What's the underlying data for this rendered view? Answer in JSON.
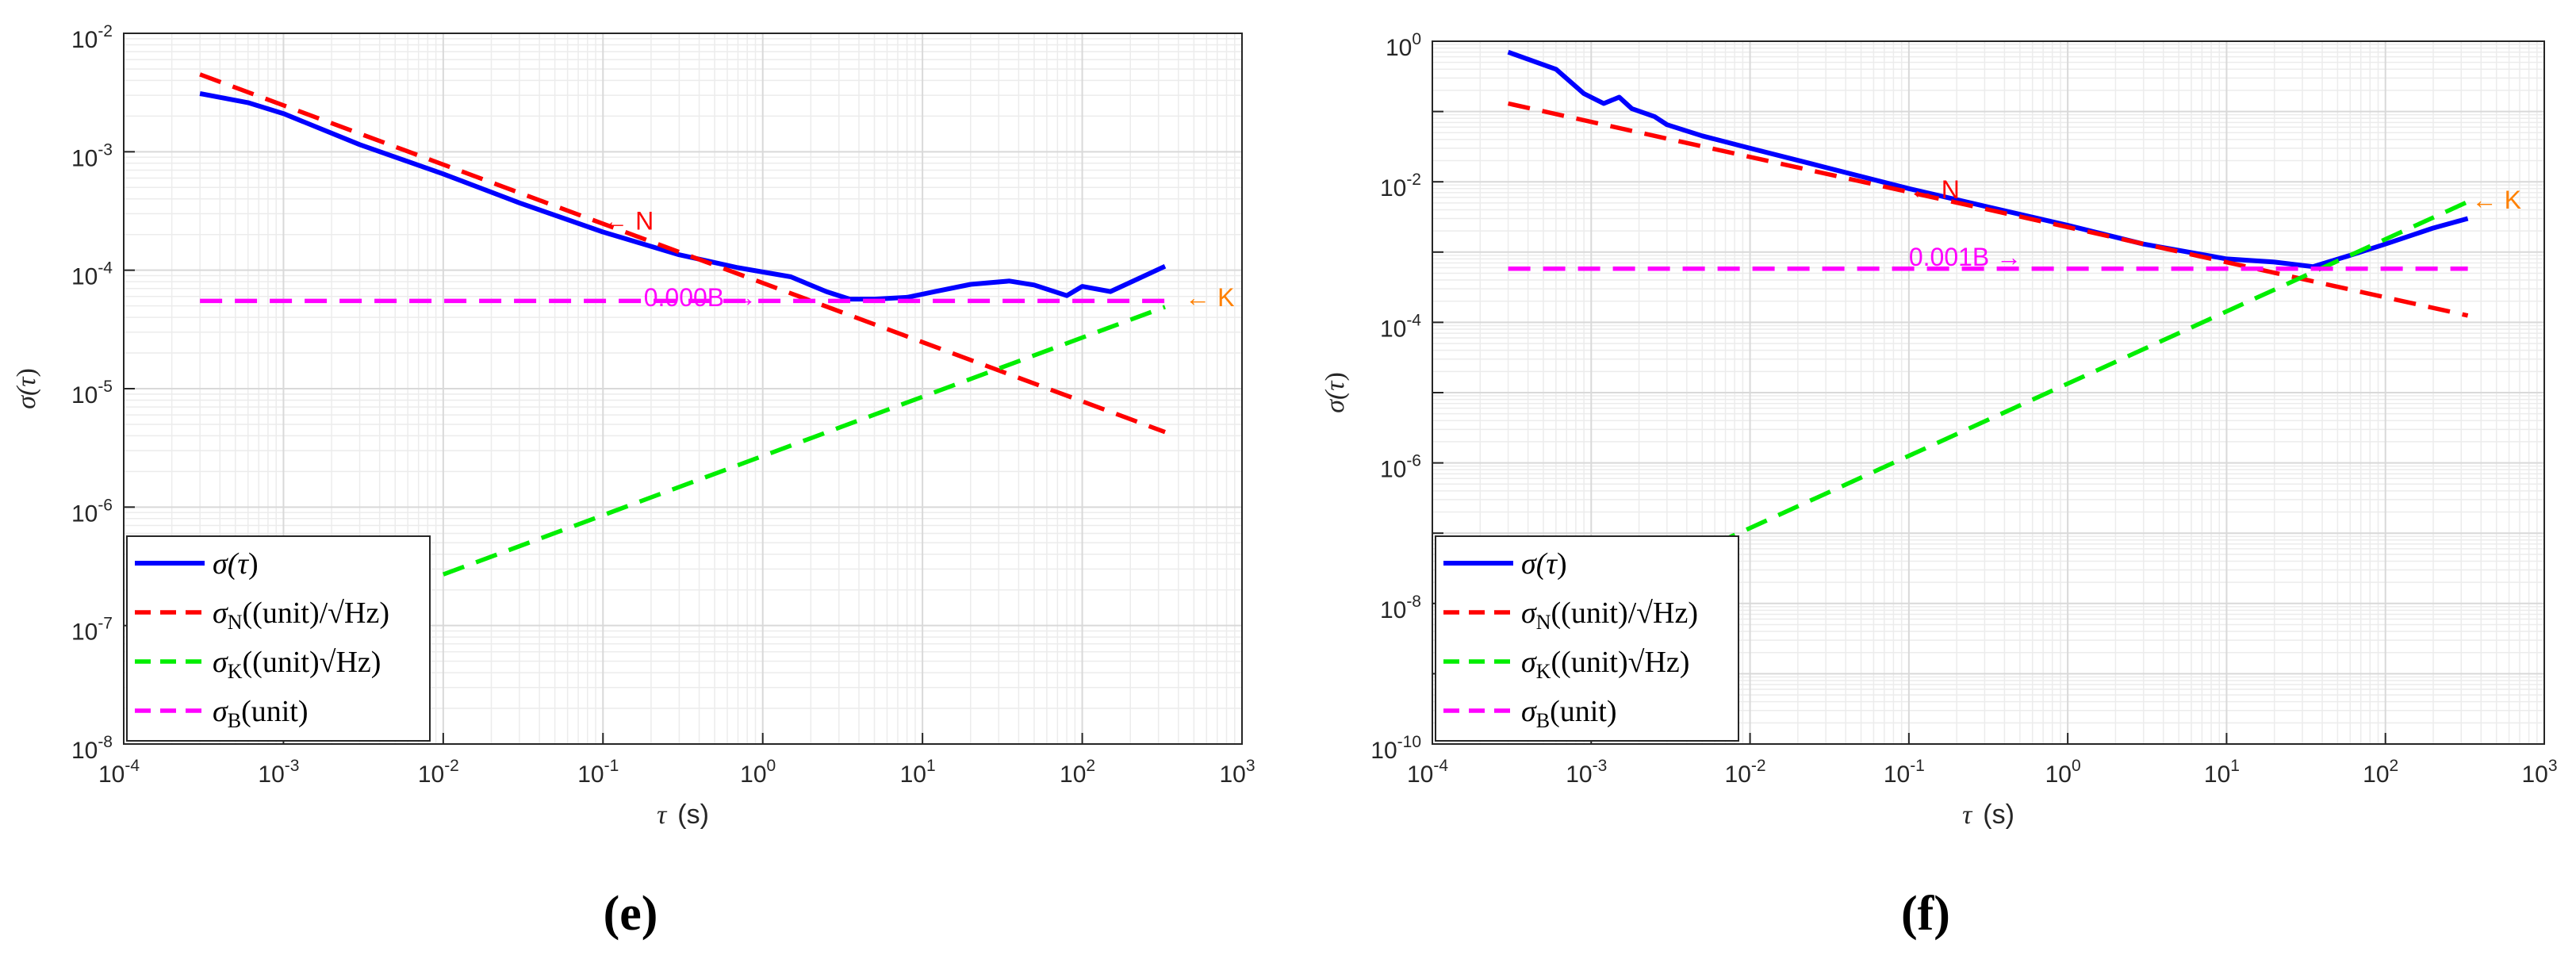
{
  "colors": {
    "sigma": "#0000FF",
    "N": "#FF0000",
    "K": "#00EE00",
    "B": "#FF00FF",
    "K_annot": "#FF8000"
  },
  "legend_labels": {
    "sigma": {
      "pre": "σ(",
      "tau": "τ",
      "post": ")"
    },
    "N": {
      "sym": "σ",
      "sub": "N",
      "rest": "((unit)/√Hz)"
    },
    "K": {
      "sym": "σ",
      "sub": "K",
      "rest": "((unit)√Hz)"
    },
    "B": {
      "sym": "σ",
      "sub": "B",
      "rest": "(unit)"
    }
  },
  "chart_data": [
    {
      "type": "line",
      "panel_label": "(e)",
      "xscale": "log",
      "yscale": "log",
      "xlabel": {
        "sym": "τ",
        "unit": "(s)"
      },
      "ylabel": {
        "pre": "σ(",
        "tau": "τ",
        "post": ")"
      },
      "xlim": [
        0.0001,
        1000
      ],
      "ylim": [
        1e-08,
        0.01
      ],
      "x_ticks": [
        {
          "base": "10",
          "exp": "-4",
          "v": 0.0001
        },
        {
          "base": "10",
          "exp": "-3",
          "v": 0.001
        },
        {
          "base": "10",
          "exp": "-2",
          "v": 0.01
        },
        {
          "base": "10",
          "exp": "-1",
          "v": 0.1
        },
        {
          "base": "10",
          "exp": "0",
          "v": 1
        },
        {
          "base": "10",
          "exp": "1",
          "v": 10
        },
        {
          "base": "10",
          "exp": "2",
          "v": 100
        },
        {
          "base": "10",
          "exp": "3",
          "v": 1000
        }
      ],
      "y_ticks": [
        {
          "base": "10",
          "exp": "-8",
          "v": 1e-08
        },
        {
          "base": "10",
          "exp": "-7",
          "v": 1e-07
        },
        {
          "base": "10",
          "exp": "-6",
          "v": 1e-06
        },
        {
          "base": "10",
          "exp": "-5",
          "v": 1e-05
        },
        {
          "base": "10",
          "exp": "-4",
          "v": 0.0001
        },
        {
          "base": "10",
          "exp": "-3",
          "v": 0.001
        },
        {
          "base": "10",
          "exp": "-2",
          "v": 0.01
        }
      ],
      "grid": true,
      "legend_position": "bottom-left",
      "series": [
        {
          "name": "sigma",
          "style": "solid",
          "x": [
            0.0003,
            0.0006,
            0.001,
            0.003,
            0.01,
            0.03,
            0.1,
            0.3,
            0.7,
            1.5,
            2.5,
            3.5,
            5,
            8,
            12,
            20,
            35,
            50,
            80,
            100,
            150,
            200,
            330
          ],
          "y": [
            0.0031,
            0.0026,
            0.0021,
            0.00115,
            0.00065,
            0.00037,
            0.00021,
            0.000135,
            0.000105,
            8.8e-05,
            6.6e-05,
            5.7e-05,
            5.7e-05,
            5.9e-05,
            6.6e-05,
            7.6e-05,
            8.1e-05,
            7.5e-05,
            6.1e-05,
            7.3e-05,
            6.6e-05,
            7.9e-05,
            0.000108
          ]
        },
        {
          "name": "N",
          "style": "dashed",
          "x": [
            0.0003,
            330
          ],
          "y": [
            0.0045,
            4.3e-06
          ]
        },
        {
          "name": "K",
          "style": "dashed",
          "x": [
            0.01,
            330
          ],
          "y": [
            2.7e-07,
            4.9e-05
          ]
        },
        {
          "name": "B",
          "style": "dashed",
          "x": [
            0.0003,
            330
          ],
          "y": [
            5.5e-05,
            5.5e-05
          ]
        }
      ],
      "annotations": [
        {
          "text": "← N",
          "color": "N",
          "x": 0.1,
          "y": 0.00026
        },
        {
          "text": "0.000B →",
          "color": "B",
          "x": 0.18,
          "y": 5.9e-05
        },
        {
          "text": "← K",
          "color": "K_annot",
          "x": 440,
          "y": 5.9e-05
        }
      ]
    },
    {
      "type": "line",
      "panel_label": "(f)",
      "xscale": "log",
      "yscale": "log",
      "xlabel": {
        "sym": "τ",
        "unit": "(s)"
      },
      "ylabel": {
        "pre": "σ(",
        "tau": "τ",
        "post": ")"
      },
      "xlim": [
        0.0001,
        1000
      ],
      "ylim": [
        1e-10,
        1
      ],
      "x_ticks": [
        {
          "base": "10",
          "exp": "-4",
          "v": 0.0001
        },
        {
          "base": "10",
          "exp": "-3",
          "v": 0.001
        },
        {
          "base": "10",
          "exp": "-2",
          "v": 0.01
        },
        {
          "base": "10",
          "exp": "-1",
          "v": 0.1
        },
        {
          "base": "10",
          "exp": "0",
          "v": 1
        },
        {
          "base": "10",
          "exp": "1",
          "v": 10
        },
        {
          "base": "10",
          "exp": "2",
          "v": 100
        },
        {
          "base": "10",
          "exp": "3",
          "v": 1000
        }
      ],
      "y_ticks": [
        {
          "base": "10",
          "exp": "-10",
          "v": 1e-10
        },
        {
          "base": "10",
          "exp": "-8",
          "v": 1e-08
        },
        {
          "base": "10",
          "exp": "-6",
          "v": 1e-06
        },
        {
          "base": "10",
          "exp": "-4",
          "v": 0.0001
        },
        {
          "base": "10",
          "exp": "-2",
          "v": 0.01
        },
        {
          "base": "10",
          "exp": "0",
          "v": 1
        }
      ],
      "grid": true,
      "legend_position": "bottom-left",
      "series": [
        {
          "name": "sigma",
          "style": "solid",
          "x": [
            0.0003,
            0.0006,
            0.0009,
            0.0012,
            0.0015,
            0.0018,
            0.0025,
            0.003,
            0.005,
            0.01,
            0.03,
            0.1,
            0.3,
            1,
            3,
            10,
            20,
            35,
            60,
            100,
            200,
            330
          ],
          "y": [
            0.7,
            0.4,
            0.18,
            0.13,
            0.16,
            0.11,
            0.085,
            0.065,
            0.045,
            0.03,
            0.016,
            0.008,
            0.0045,
            0.0024,
            0.0013,
            0.0008,
            0.00072,
            0.00062,
            0.0009,
            0.0013,
            0.0022,
            0.003
          ]
        },
        {
          "name": "N",
          "style": "dashed",
          "x": [
            0.0003,
            330
          ],
          "y": [
            0.13,
            0.000125
          ]
        },
        {
          "name": "K",
          "style": "dashed",
          "x": [
            0.006,
            330
          ],
          "y": [
            7e-08,
            0.0052
          ]
        },
        {
          "name": "B",
          "style": "dashed",
          "x": [
            0.0003,
            330
          ],
          "y": [
            0.00058,
            0.00058
          ]
        }
      ],
      "annotations": [
        {
          "text": "← N",
          "color": "N",
          "x": 0.1,
          "y": 0.0078
        },
        {
          "text": "0.001B →",
          "color": "B",
          "x": 0.1,
          "y": 0.00085
        },
        {
          "text": "← K",
          "color": "K_annot",
          "x": 350,
          "y": 0.0055
        }
      ]
    }
  ]
}
